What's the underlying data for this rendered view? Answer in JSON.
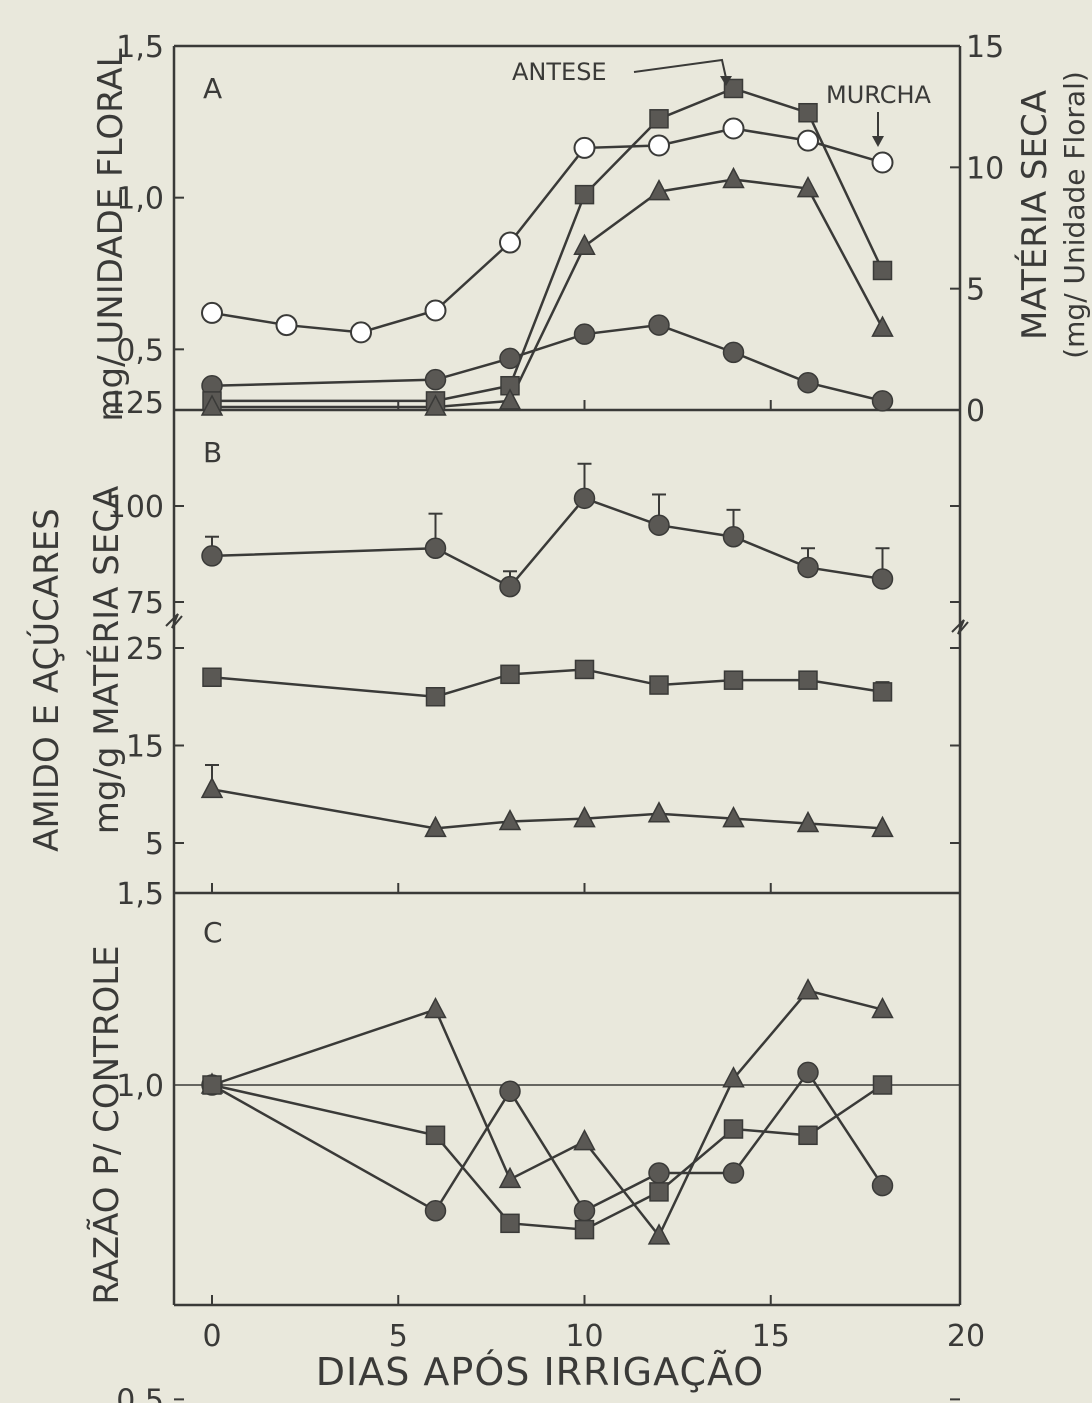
{
  "colors": {
    "background": "#e9e8dc",
    "ink": "#3a3a38",
    "marker_fill": "#5a5854",
    "open_fill": "#ffffff"
  },
  "chart_data": [
    {
      "panel": "A",
      "type": "line",
      "x_range": [
        0,
        20
      ],
      "ylim": [
        0.3,
        1.5
      ],
      "y_ticks": [
        "1,5",
        "1,0",
        "0,5"
      ],
      "right_ylim": [
        0,
        15
      ],
      "right_ticks": [
        "15",
        "10",
        "5",
        "0"
      ],
      "ylabel": "mg/ UNIDADE FLORAL",
      "right_ylabel_line1": "MATÉRIA SECA",
      "right_ylabel_line2": "(mg/ Unidade Floral)",
      "annotations": {
        "antese": "ANTESE",
        "murcha": "MURCHA"
      },
      "series": [
        {
          "marker": "open-circle",
          "axis": "right",
          "x": [
            0,
            2,
            4,
            6,
            8,
            10,
            12,
            14,
            16,
            18
          ],
          "values": [
            4.0,
            3.5,
            3.2,
            4.1,
            6.9,
            10.8,
            10.9,
            11.6,
            11.1,
            10.2
          ]
        },
        {
          "marker": "circle",
          "axis": "left",
          "x": [
            0,
            6,
            8,
            10,
            12,
            14,
            16,
            18
          ],
          "values": [
            0.38,
            0.4,
            0.47,
            0.55,
            0.58,
            0.49,
            0.39,
            0.33
          ]
        },
        {
          "marker": "square",
          "axis": "left",
          "x": [
            0,
            6,
            8,
            10,
            12,
            14,
            16,
            18
          ],
          "values": [
            0.33,
            0.33,
            0.38,
            1.01,
            1.26,
            1.36,
            1.28,
            0.76
          ]
        },
        {
          "marker": "triangle",
          "axis": "left",
          "x": [
            0,
            6,
            8,
            10,
            12,
            14,
            16,
            18
          ],
          "values": [
            0.31,
            0.31,
            0.33,
            0.84,
            1.02,
            1.06,
            1.03,
            0.57
          ]
        }
      ]
    },
    {
      "panel": "B",
      "type": "line",
      "x_range": [
        0,
        20
      ],
      "ylabel_line1": "AMIDO E AÇÚCARES",
      "ylabel_line2": "mg/g MATÉRIA SECA",
      "upper_ylim": [
        75,
        125
      ],
      "upper_ticks": [
        "125",
        "100",
        "75"
      ],
      "lower_ylim": [
        1.5,
        25
      ],
      "lower_ticks": [
        "25",
        "15",
        "5",
        "1,5"
      ],
      "series": [
        {
          "marker": "circle",
          "x": [
            0,
            6,
            8,
            10,
            12,
            14,
            16,
            18
          ],
          "values": [
            87,
            89,
            79,
            102,
            95,
            92,
            84,
            81
          ],
          "errors": [
            5,
            9,
            4,
            9,
            8,
            7,
            5,
            8
          ]
        },
        {
          "marker": "square",
          "x": [
            0,
            6,
            8,
            10,
            12,
            14,
            16,
            18
          ],
          "values": [
            22,
            20,
            22.3,
            22.8,
            21.2,
            21.7,
            21.7,
            20.5
          ],
          "errors": [
            0,
            0,
            0,
            0,
            0,
            0,
            0,
            1
          ]
        },
        {
          "marker": "triangle",
          "x": [
            0,
            6,
            8,
            10,
            12,
            14,
            16,
            18
          ],
          "values": [
            10.5,
            6.5,
            7.2,
            7.5,
            8,
            7.5,
            7,
            6.5
          ],
          "errors": [
            2.5,
            0,
            0,
            0,
            0,
            0,
            0,
            0
          ]
        }
      ]
    },
    {
      "panel": "C",
      "type": "line",
      "x_range": [
        0,
        20
      ],
      "x_ticks": [
        "0",
        "5",
        "10",
        "15",
        "20"
      ],
      "ylim": [
        0.5,
        1.5
      ],
      "y_ticks": [
        "1,0",
        "0,5"
      ],
      "ylabel": "RAZÃO P/ CONTROLE",
      "xlabel": "DIAS APÓS IRRIGAÇÃO",
      "reference_line": 1.0,
      "series": [
        {
          "marker": "triangle",
          "x": [
            0,
            6,
            8,
            10,
            12,
            14,
            16,
            18
          ],
          "values": [
            1.0,
            1.12,
            0.85,
            0.91,
            0.76,
            1.01,
            1.15,
            1.12
          ]
        },
        {
          "marker": "circle",
          "x": [
            0,
            6,
            8,
            10,
            12,
            14,
            16,
            18
          ],
          "values": [
            1.0,
            0.8,
            0.99,
            0.8,
            0.86,
            0.86,
            1.02,
            0.84
          ]
        },
        {
          "marker": "square",
          "x": [
            0,
            6,
            8,
            10,
            12,
            14,
            16,
            18
          ],
          "values": [
            1.0,
            0.92,
            0.78,
            0.77,
            0.83,
            0.93,
            0.92,
            1.0
          ]
        }
      ]
    }
  ]
}
